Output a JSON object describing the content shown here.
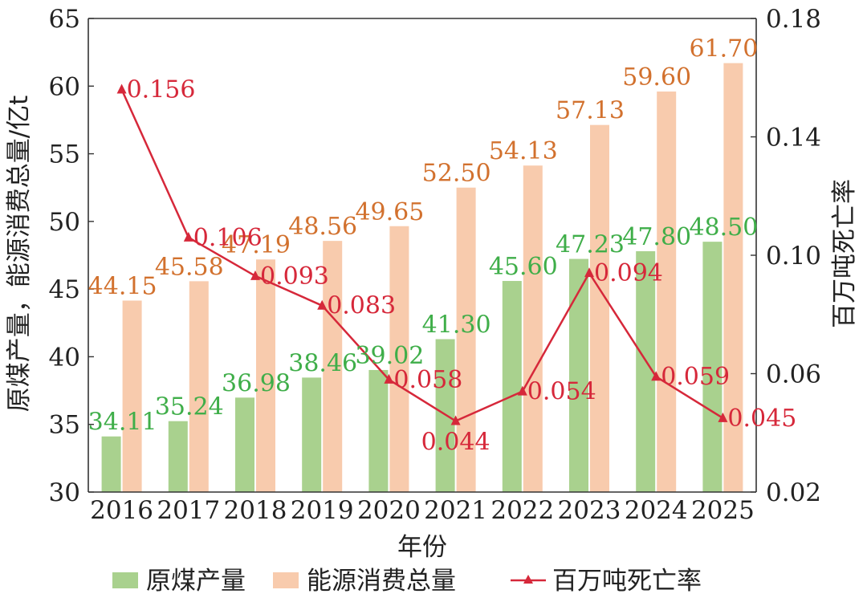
{
  "chart_data": {
    "type": "bar",
    "categories": [
      "2016",
      "2017",
      "2018",
      "2019",
      "2020",
      "2021",
      "2022",
      "2023",
      "2024",
      "2025"
    ],
    "series": [
      {
        "name": "原煤产量",
        "kind": "bar",
        "axis": "left",
        "color": "#a9d18e",
        "values": [
          34.11,
          35.24,
          36.98,
          38.46,
          39.02,
          41.3,
          45.6,
          47.23,
          47.8,
          48.5
        ],
        "labels": [
          "34.11",
          "35.24",
          "36.98",
          "38.46",
          "39.02",
          "41.30",
          "45.60",
          "47.23",
          "47.80",
          "48.50"
        ]
      },
      {
        "name": "能源消费总量",
        "kind": "bar",
        "axis": "left",
        "color": "#f8cbad",
        "values": [
          44.15,
          45.58,
          47.19,
          48.56,
          49.65,
          52.5,
          54.13,
          57.13,
          59.6,
          61.7
        ],
        "labels": [
          "44.15",
          "45.58",
          "47.19",
          "48.56",
          "49.65",
          "52.50",
          "54.13",
          "57.13",
          "59.60",
          "61.70"
        ]
      },
      {
        "name": "百万吨死亡率",
        "kind": "line",
        "axis": "right",
        "color": "#d6283a",
        "values": [
          0.156,
          0.106,
          0.093,
          0.083,
          0.058,
          0.044,
          0.054,
          0.094,
          0.059,
          0.045
        ],
        "labels": [
          "0.156",
          "0.106",
          "0.093",
          "0.083",
          "0.058",
          "0.044",
          "0.054",
          "0.094",
          "0.059",
          "0.045"
        ]
      }
    ],
    "xlabel": "年份",
    "ylabel": "原煤产量，能源消费总量/亿t",
    "y2label": "百万吨死亡率",
    "ylim": [
      30,
      65
    ],
    "y2lim": [
      0.02,
      0.18
    ],
    "yticks": [
      "30",
      "35",
      "40",
      "45",
      "50",
      "55",
      "60",
      "65"
    ],
    "y2ticks": [
      "0.02",
      "0.06",
      "0.10",
      "0.14",
      "0.18"
    ],
    "legend_position": "bottom",
    "grid": false
  }
}
